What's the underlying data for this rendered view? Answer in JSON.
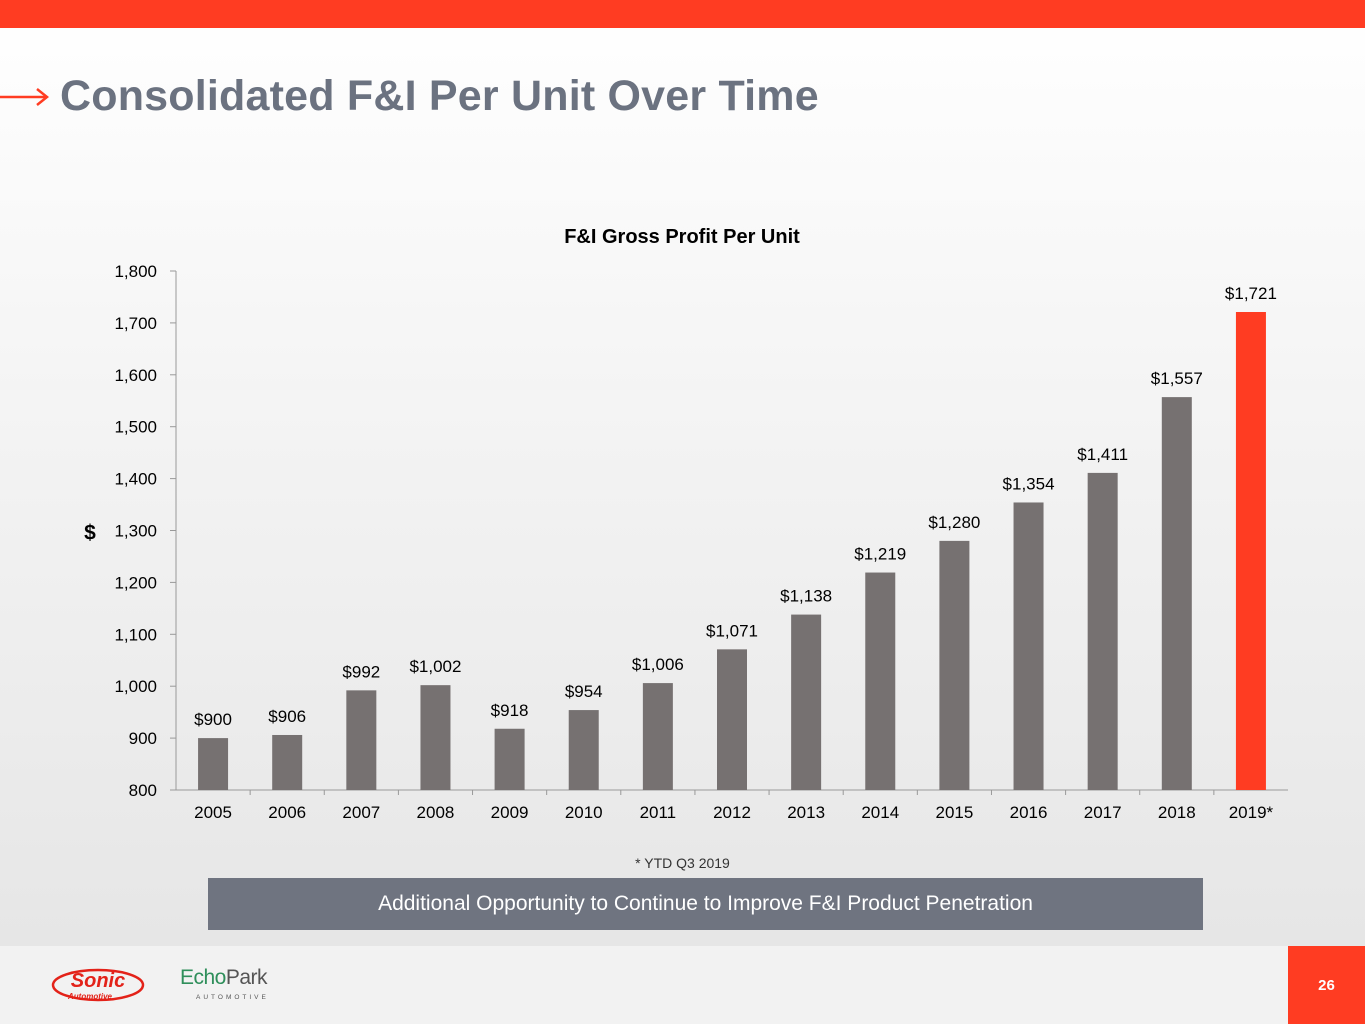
{
  "slide": {
    "title": "Consolidated F&I Per Unit Over Time",
    "footnote": "* YTD Q3 2019",
    "callout": "Additional Opportunity to Continue to Improve F&I Product Penetration",
    "page_number": "26"
  },
  "logos": {
    "sonic": {
      "line1": "Sonic",
      "line2": "Automotive"
    },
    "echopark": {
      "echo": "Echo",
      "park": "Park",
      "sub": "AUTOMOTIVE"
    }
  },
  "colors": {
    "accent": "#ff3c22",
    "bar": "#767171",
    "highlight_bar": "#ff3c22",
    "title": "#6b7280",
    "callout_bg": "#6f7480"
  },
  "chart_data": {
    "type": "bar",
    "title": "F&I Gross Profit Per Unit",
    "ylabel": "$",
    "xlabel": "",
    "ylim": [
      800,
      1800
    ],
    "yticks": [
      "800",
      "900",
      "1,000",
      "1,100",
      "1,200",
      "1,300",
      "1,400",
      "1,500",
      "1,600",
      "1,700",
      "1,800"
    ],
    "grid": false,
    "categories": [
      "2005",
      "2006",
      "2007",
      "2008",
      "2009",
      "2010",
      "2011",
      "2012",
      "2013",
      "2014",
      "2015",
      "2016",
      "2017",
      "2018",
      "2019*"
    ],
    "values": [
      900,
      906,
      992,
      1002,
      918,
      954,
      1006,
      1071,
      1138,
      1219,
      1280,
      1354,
      1411,
      1557,
      1721
    ],
    "data_labels": [
      "$900",
      "$906",
      "$992",
      "$1,002",
      "$918",
      "$954",
      "$1,006",
      "$1,071",
      "$1,138",
      "$1,219",
      "$1,280",
      "$1,354",
      "$1,411",
      "$1,557",
      "$1,721"
    ],
    "highlight_index": 14
  }
}
